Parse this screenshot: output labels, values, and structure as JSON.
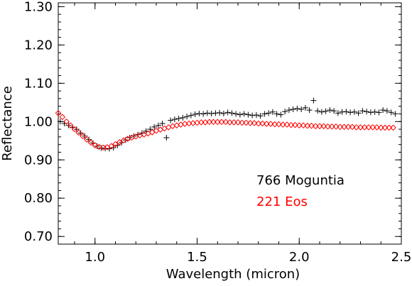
{
  "chart_data": {
    "type": "scatter",
    "xlabel": "Wavelength (micron)",
    "ylabel": "Reflectance",
    "xlim": [
      0.82,
      2.5
    ],
    "ylim": [
      0.68,
      1.31
    ],
    "xticks": [
      1.0,
      1.5,
      2.0,
      2.5
    ],
    "xtick_labels": [
      "1.0",
      "1.5",
      "2.0",
      "2.5"
    ],
    "yticks": [
      0.7,
      0.8,
      0.9,
      1.0,
      1.1,
      1.2,
      1.3
    ],
    "ytick_labels": [
      "0.70",
      "0.80",
      "0.90",
      "1.00",
      "1.10",
      "1.20",
      "1.30"
    ],
    "grid": false,
    "legend_position": "lower-right",
    "series": [
      {
        "name": "766 Moguntia",
        "marker": "plus",
        "color": "#000000",
        "x": [
          0.83,
          0.85,
          0.87,
          0.89,
          0.91,
          0.93,
          0.95,
          0.97,
          0.99,
          1.01,
          1.03,
          1.05,
          1.07,
          1.09,
          1.11,
          1.13,
          1.15,
          1.17,
          1.19,
          1.21,
          1.23,
          1.25,
          1.27,
          1.29,
          1.31,
          1.33,
          1.35,
          1.37,
          1.39,
          1.41,
          1.43,
          1.45,
          1.47,
          1.49,
          1.51,
          1.53,
          1.55,
          1.57,
          1.59,
          1.61,
          1.63,
          1.65,
          1.67,
          1.69,
          1.71,
          1.73,
          1.75,
          1.77,
          1.79,
          1.81,
          1.83,
          1.85,
          1.87,
          1.89,
          1.91,
          1.93,
          1.95,
          1.97,
          1.99,
          2.01,
          2.03,
          2.05,
          2.07,
          2.09,
          2.11,
          2.13,
          2.15,
          2.17,
          2.19,
          2.21,
          2.23,
          2.25,
          2.27,
          2.29,
          2.31,
          2.33,
          2.35,
          2.37,
          2.39,
          2.41,
          2.43,
          2.45,
          2.47
        ],
        "y": [
          1.0,
          0.995,
          0.99,
          0.985,
          0.98,
          0.97,
          0.962,
          0.953,
          0.944,
          0.936,
          0.931,
          0.93,
          0.929,
          0.932,
          0.938,
          0.945,
          0.952,
          0.958,
          0.962,
          0.966,
          0.97,
          0.975,
          0.98,
          0.986,
          0.99,
          0.995,
          0.958,
          1.003,
          1.006,
          1.008,
          1.01,
          1.013,
          1.016,
          1.019,
          1.021,
          1.02,
          1.022,
          1.021,
          1.022,
          1.023,
          1.021,
          1.024,
          1.022,
          1.02,
          1.018,
          1.02,
          1.018,
          1.016,
          1.017,
          1.015,
          1.02,
          1.022,
          1.025,
          1.02,
          1.018,
          1.026,
          1.03,
          1.032,
          1.034,
          1.032,
          1.036,
          1.03,
          1.055,
          1.028,
          1.025,
          1.027,
          1.03,
          1.028,
          1.022,
          1.025,
          1.026,
          1.024,
          1.025,
          1.022,
          1.028,
          1.026,
          1.024,
          1.025,
          1.024,
          1.03,
          1.028,
          1.024,
          1.02
        ]
      },
      {
        "name": "221 Eos",
        "marker": "diamond",
        "color": "#ff0000",
        "x": [
          0.82,
          0.84,
          0.86,
          0.88,
          0.9,
          0.92,
          0.94,
          0.96,
          0.98,
          1.0,
          1.02,
          1.04,
          1.06,
          1.08,
          1.1,
          1.12,
          1.14,
          1.16,
          1.18,
          1.2,
          1.22,
          1.24,
          1.26,
          1.28,
          1.3,
          1.32,
          1.34,
          1.36,
          1.38,
          1.4,
          1.42,
          1.44,
          1.46,
          1.48,
          1.5,
          1.52,
          1.54,
          1.56,
          1.58,
          1.6,
          1.62,
          1.64,
          1.66,
          1.68,
          1.7,
          1.72,
          1.74,
          1.76,
          1.78,
          1.8,
          1.82,
          1.84,
          1.86,
          1.88,
          1.9,
          1.92,
          1.94,
          1.96,
          1.98,
          2.0,
          2.02,
          2.04,
          2.06,
          2.08,
          2.1,
          2.12,
          2.14,
          2.16,
          2.18,
          2.2,
          2.22,
          2.24,
          2.26,
          2.28,
          2.3,
          2.32,
          2.34,
          2.36,
          2.38,
          2.4,
          2.42,
          2.44,
          2.46
        ],
        "y": [
          1.022,
          1.012,
          1.0,
          0.99,
          0.98,
          0.971,
          0.962,
          0.953,
          0.945,
          0.938,
          0.934,
          0.932,
          0.933,
          0.936,
          0.941,
          0.946,
          0.951,
          0.955,
          0.958,
          0.961,
          0.964,
          0.966,
          0.969,
          0.972,
          0.976,
          0.979,
          0.982,
          0.985,
          0.988,
          0.99,
          0.992,
          0.994,
          0.995,
          0.996,
          0.997,
          0.998,
          0.998,
          0.999,
          0.999,
          0.999,
          0.999,
          0.999,
          0.998,
          0.998,
          0.998,
          0.997,
          0.997,
          0.996,
          0.996,
          0.995,
          0.995,
          0.994,
          0.994,
          0.993,
          0.993,
          0.992,
          0.992,
          0.991,
          0.991,
          0.99,
          0.99,
          0.989,
          0.989,
          0.988,
          0.988,
          0.988,
          0.987,
          0.987,
          0.987,
          0.986,
          0.986,
          0.986,
          0.986,
          0.985,
          0.985,
          0.985,
          0.985,
          0.985,
          0.985,
          0.984,
          0.984,
          0.984,
          0.984
        ]
      }
    ]
  }
}
